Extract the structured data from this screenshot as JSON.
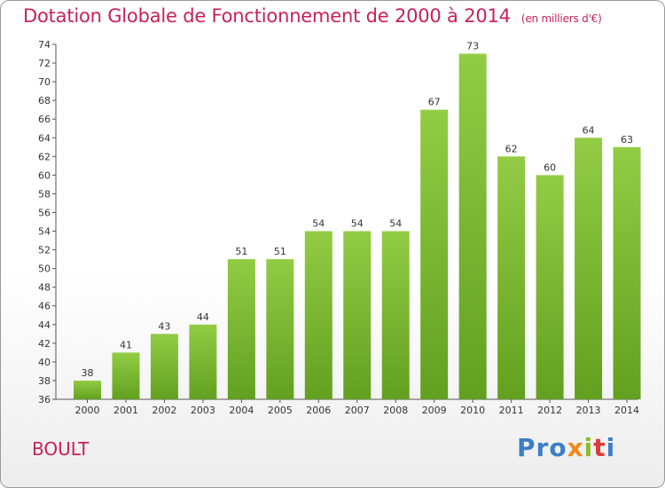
{
  "chart_data": {
    "type": "bar",
    "title": "Dotation Globale de Fonctionnement de 2000 à 2014",
    "unit": "(en milliers d'€)",
    "categories": [
      "2000",
      "2001",
      "2002",
      "2003",
      "2004",
      "2005",
      "2006",
      "2007",
      "2008",
      "2009",
      "2010",
      "2011",
      "2012",
      "2013",
      "2014"
    ],
    "values": [
      38,
      41,
      43,
      44,
      51,
      51,
      54,
      54,
      54,
      67,
      73,
      62,
      60,
      64,
      63
    ],
    "ylim": [
      36,
      74
    ],
    "yticks": [
      36,
      38,
      40,
      42,
      44,
      46,
      48,
      50,
      52,
      54,
      56,
      58,
      60,
      62,
      64,
      66,
      68,
      70,
      72,
      74
    ],
    "grid": false,
    "bar_color": "#8cc63f",
    "bar_color_dark": "#5f9a1d"
  },
  "commune": "BOULT",
  "logo": {
    "p1": "Pro",
    "p2": "x",
    "p3": "i",
    "p4": "t",
    "p5": "i"
  },
  "colors": {
    "title": "#c8215a"
  }
}
